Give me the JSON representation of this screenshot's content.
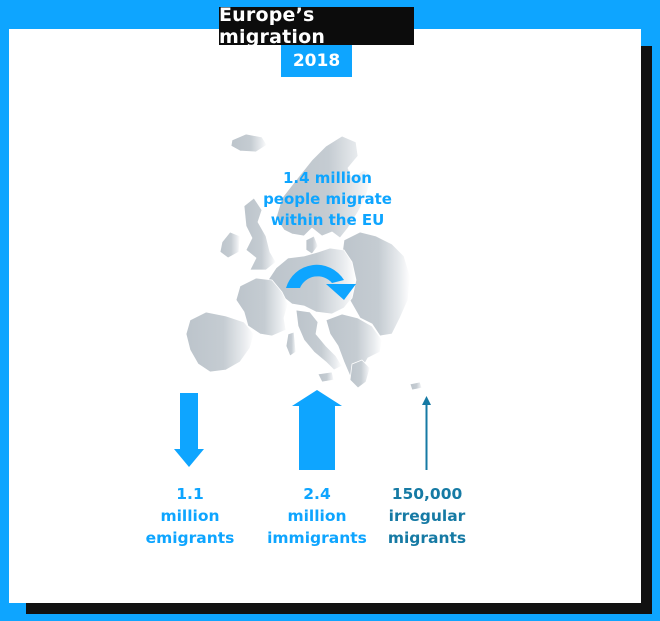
{
  "title": "Europe’s migration",
  "year": "2018",
  "colors": {
    "accent": "#0ea5ff",
    "dark_teal": "#167aa4",
    "map_gray": "#bcc4cb",
    "background": "#0ea5ff",
    "title_bg": "#0c0c0c"
  },
  "within_eu": {
    "line1": "1.4 million",
    "line2": "people migrate",
    "line3": "within the EU",
    "icon": "circular-arrow-icon"
  },
  "stats": [
    {
      "line1": "1.1",
      "line2": "million",
      "line3": "emigrants",
      "arrow": "down"
    },
    {
      "line1": "2.4",
      "line2": "million",
      "line3": "immigrants",
      "arrow": "up"
    },
    {
      "line1": "150,000",
      "line2": "irregular",
      "line3": "migrants",
      "arrow": "up-thin"
    }
  ]
}
